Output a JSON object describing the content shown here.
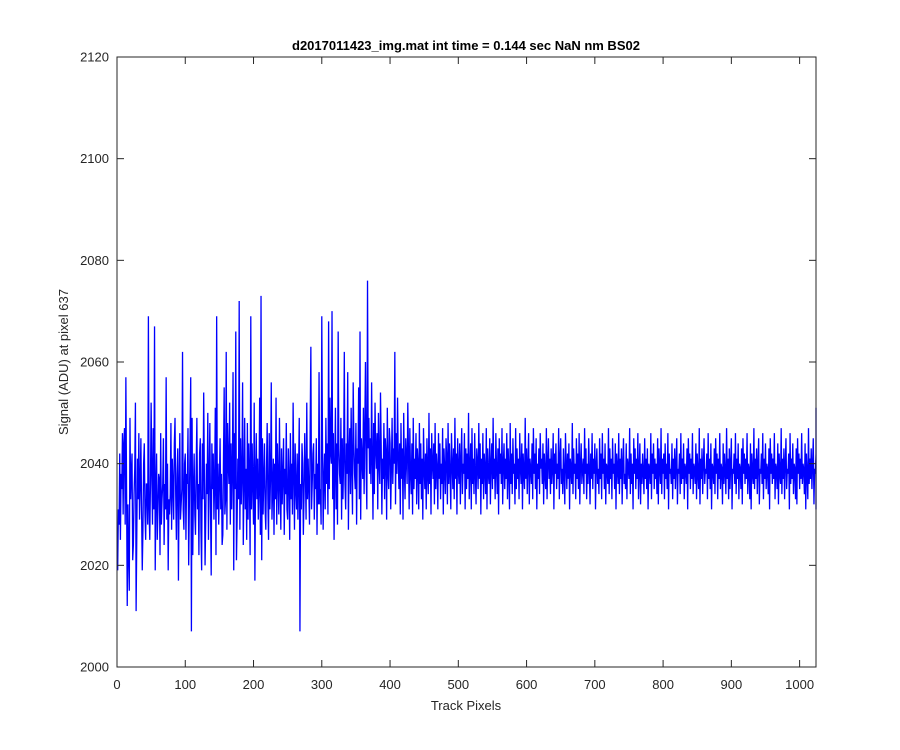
{
  "chart_data": {
    "type": "line",
    "title": "d2017011423_img.mat int time = 0.144 sec  NaN nm BS02",
    "xlabel": "Track Pixels",
    "ylabel": "Signal (ADU) at pixel 637",
    "xlim": [
      0,
      1024
    ],
    "ylim": [
      2000,
      2120
    ],
    "xticks": [
      0,
      100,
      200,
      300,
      400,
      500,
      600,
      700,
      800,
      900,
      1000
    ],
    "yticks": [
      2000,
      2020,
      2040,
      2060,
      2080,
      2100,
      2120
    ],
    "grid": false,
    "colors": {
      "line": "#0000ff",
      "axes": "#262626"
    },
    "series": [
      {
        "x_start": 1,
        "x_step": 1,
        "values": [
          2019,
          2031,
          2028,
          2042,
          2025,
          2038,
          2035,
          2046,
          2030,
          2044,
          2047,
          2028,
          2057,
          2035,
          2012,
          2032,
          2022,
          2015,
          2049,
          2033,
          2038,
          2042,
          2021,
          2024,
          2034,
          2039,
          2052,
          2011,
          2026,
          2041,
          2033,
          2046,
          2029,
          2036,
          2045,
          2031,
          2019,
          2027,
          2040,
          2044,
          2030,
          2025,
          2036,
          2036,
          2028,
          2069,
          2031,
          2025,
          2036,
          2052,
          2038,
          2028,
          2047,
          2031,
          2067,
          2019,
          2034,
          2042,
          2025,
          2031,
          2038,
          2037,
          2022,
          2046,
          2028,
          2033,
          2036,
          2045,
          2024,
          2036,
          2031,
          2057,
          2029,
          2040,
          2019,
          2033,
          2030,
          2034,
          2048,
          2027,
          2041,
          2036,
          2029,
          2044,
          2049,
          2034,
          2025,
          2038,
          2043,
          2017,
          2036,
          2046,
          2029,
          2032,
          2035,
          2062,
          2031,
          2027,
          2040,
          2042,
          2025,
          2038,
          2036,
          2047,
          2020,
          2032,
          2044,
          2057,
          2007,
          2049,
          2022,
          2035,
          2042,
          2030,
          2026,
          2039,
          2049,
          2031,
          2036,
          2022,
          2042,
          2045,
          2027,
          2019,
          2044,
          2033,
          2054,
          2038,
          2020,
          2029,
          2040,
          2034,
          2050,
          2025,
          2037,
          2048,
          2031,
          2018,
          2044,
          2035,
          2042,
          2029,
          2036,
          2051,
          2022,
          2069,
          2031,
          2040,
          2028,
          2036,
          2045,
          2031,
          2038,
          2024,
          2026,
          2041,
          2055,
          2030,
          2033,
          2062,
          2027,
          2048,
          2040,
          2036,
          2052,
          2028,
          2044,
          2031,
          2039,
          2058,
          2019,
          2046,
          2035,
          2066,
          2021,
          2029,
          2041,
          2033,
          2072,
          2027,
          2045,
          2032,
          2038,
          2056,
          2024,
          2036,
          2049,
          2031,
          2039,
          2025,
          2048,
          2029,
          2044,
          2037,
          2022,
          2069,
          2031,
          2044,
          2036,
          2028,
          2052,
          2017,
          2037,
          2046,
          2033,
          2041,
          2029,
          2035,
          2053,
          2026,
          2073,
          2021,
          2045,
          2030,
          2037,
          2044,
          2031,
          2027,
          2039,
          2048,
          2033,
          2025,
          2046,
          2031,
          2038,
          2056,
          2029,
          2035,
          2041,
          2026,
          2040,
          2033,
          2053,
          2028,
          2044,
          2037,
          2030,
          2049,
          2036,
          2027,
          2043,
          2032,
          2038,
          2045,
          2026,
          2039,
          2034,
          2048,
          2031,
          2029,
          2043,
          2037,
          2025,
          2046,
          2033,
          2040,
          2030,
          2052,
          2038,
          2027,
          2044,
          2035,
          2031,
          2042,
          2029,
          2039,
          2049,
          2007,
          2036,
          2031,
          2044,
          2040,
          2026,
          2034,
          2046,
          2038,
          2029,
          2052,
          2033,
          2041,
          2035,
          2028,
          2047,
          2063,
          2031,
          2036,
          2042,
          2044,
          2029,
          2038,
          2035,
          2045,
          2026,
          2040,
          2032,
          2058,
          2032,
          2035,
          2028,
          2069,
          2045,
          2027,
          2037,
          2042,
          2031,
          2049,
          2036,
          2044,
          2030,
          2068,
          2035,
          2053,
          2042,
          2040,
          2070,
          2033,
          2046,
          2025,
          2039,
          2051,
          2031,
          2044,
          2028,
          2066,
          2043,
          2038,
          2036,
          2049,
          2029,
          2045,
          2033,
          2041,
          2062,
          2036,
          2031,
          2044,
          2038,
          2058,
          2027,
          2042,
          2047,
          2034,
          2051,
          2039,
          2030,
          2056,
          2044,
          2038,
          2035,
          2048,
          2028,
          2043,
          2040,
          2055,
          2033,
          2066,
          2029,
          2045,
          2041,
          2037,
          2051,
          2034,
          2047,
          2060,
          2039,
          2031,
          2076,
          2043,
          2049,
          2038,
          2045,
          2036,
          2056,
          2041,
          2029,
          2048,
          2034,
          2052,
          2043,
          2039,
          2046,
          2031,
          2050,
          2040,
          2036,
          2054,
          2044,
          2030,
          2041,
          2037,
          2048,
          2033,
          2045,
          2042,
          2029,
          2051,
          2038,
          2035,
          2047,
          2044,
          2031,
          2039,
          2049,
          2036,
          2043,
          2040,
          2062,
          2032,
          2046,
          2038,
          2053,
          2041,
          2035,
          2044,
          2030,
          2048,
          2037,
          2043,
          2029,
          2050,
          2039,
          2033,
          2045,
          2041,
          2036,
          2052,
          2042,
          2031,
          2047,
          2038,
          2034,
          2044,
          2030,
          2049,
          2035,
          2041,
          2037,
          2046,
          2032,
          2043,
          2040,
          2031,
          2048,
          2036,
          2044,
          2033,
          2041,
          2029,
          2047,
          2039,
          2035,
          2042,
          2031,
          2045,
          2038,
          2034,
          2050,
          2036,
          2043,
          2030,
          2046,
          2040,
          2037,
          2044,
          2032,
          2048,
          2035,
          2042,
          2039,
          2031,
          2046,
          2037,
          2044,
          2033,
          2040,
          2036,
          2047,
          2030,
          2043,
          2039,
          2034,
          2045,
          2041,
          2032,
          2048,
          2036,
          2044,
          2038,
          2031,
          2046,
          2040,
          2035,
          2043,
          2033,
          2049,
          2037,
          2042,
          2030,
          2045,
          2039,
          2036,
          2044,
          2032,
          2041,
          2047,
          2034,
          2040,
          2038,
          2046,
          2031,
          2043,
          2035,
          2042,
          2037,
          2050,
          2033,
          2039,
          2044,
          2031,
          2047,
          2036,
          2041,
          2034,
          2046,
          2038,
          2032,
          2043,
          2040,
          2035,
          2048,
          2037,
          2044,
          2030,
          2041,
          2036,
          2046,
          2033,
          2042,
          2039,
          2034,
          2047,
          2031,
          2043,
          2038,
          2036,
          2045,
          2032,
          2040,
          2044,
          2035,
          2049,
          2037,
          2041,
          2033,
          2046,
          2039,
          2034,
          2043,
          2030,
          2045,
          2038,
          2042,
          2036,
          2047,
          2032,
          2040,
          2044,
          2035,
          2041,
          2037,
          2046,
          2033,
          2043,
          2039,
          2031,
          2048,
          2036,
          2042,
          2034,
          2045,
          2038,
          2040,
          2032,
          2047,
          2035,
          2043,
          2037,
          2041,
          2033,
          2046,
          2039,
          2036,
          2044,
          2031,
          2042,
          2038,
          2035,
          2049,
          2037,
          2043,
          2034,
          2040,
          2046,
          2032,
          2041,
          2039,
          2036,
          2044,
          2033,
          2047,
          2038,
          2042,
          2035,
          2045,
          2031,
          2040,
          2037,
          2043,
          2034,
          2046,
          2039,
          2041,
          2036,
          2044,
          2032,
          2042,
          2038,
          2035,
          2047,
          2033,
          2040,
          2045,
          2037,
          2041,
          2034,
          2043,
          2036,
          2039,
          2046,
          2031,
          2042,
          2038,
          2044,
          2035,
          2040,
          2037,
          2047,
          2033,
          2041,
          2045,
          2036,
          2039,
          2034,
          2043,
          2038,
          2032,
          2046,
          2040,
          2035,
          2042,
          2037,
          2044,
          2031,
          2041,
          2039,
          2036,
          2048,
          2034,
          2043,
          2038,
          2040,
          2033,
          2045,
          2037,
          2042,
          2035,
          2046,
          2032,
          2040,
          2044,
          2036,
          2039,
          2041,
          2034,
          2047,
          2038,
          2043,
          2033,
          2040,
          2036,
          2045,
          2039,
          2032,
          2042,
          2037,
          2046,
          2035,
          2041,
          2038,
          2044,
          2031,
          2040,
          2043,
          2036,
          2039,
          2034,
          2045,
          2037,
          2042,
          2033,
          2046,
          2038,
          2041,
          2035,
          2044,
          2032,
          2040,
          2039,
          2036,
          2047,
          2034,
          2043,
          2037,
          2041,
          2033,
          2045,
          2038,
          2040,
          2035,
          2044,
          2031,
          2042,
          2039,
          2036,
          2046,
          2034,
          2041,
          2037,
          2043,
          2032,
          2040,
          2045,
          2036,
          2038,
          2035,
          2044,
          2033,
          2041,
          2039,
          2037,
          2047,
          2034,
          2042,
          2036,
          2040,
          2031,
          2045,
          2038,
          2043,
          2035,
          2041,
          2037,
          2046,
          2033,
          2039,
          2044,
          2032,
          2040,
          2036,
          2042,
          2038,
          2034,
          2045,
          2037,
          2041,
          2035,
          2043,
          2031,
          2040,
          2039,
          2036,
          2046,
          2033,
          2042,
          2038,
          2044,
          2035,
          2041,
          2037,
          2040,
          2034,
          2045,
          2032,
          2043,
          2039,
          2036,
          2047,
          2034,
          2041,
          2038,
          2042,
          2033,
          2044,
          2037,
          2040,
          2035,
          2046,
          2031,
          2042,
          2038,
          2039,
          2036,
          2044,
          2033,
          2041,
          2037,
          2043,
          2035,
          2040,
          2045,
          2032,
          2039,
          2038,
          2042,
          2034,
          2046,
          2036,
          2041,
          2037,
          2044,
          2033,
          2040,
          2039,
          2036,
          2043,
          2031,
          2045,
          2038,
          2042,
          2035,
          2041,
          2037,
          2046,
          2034,
          2040,
          2039,
          2036,
          2044,
          2033,
          2042,
          2038,
          2035,
          2047,
          2032,
          2041,
          2037,
          2043,
          2034,
          2040,
          2045,
          2036,
          2039,
          2038,
          2042,
          2033,
          2046,
          2037,
          2041,
          2035,
          2044,
          2031,
          2040,
          2039,
          2036,
          2043,
          2034,
          2045,
          2038,
          2042,
          2033,
          2041,
          2037,
          2046,
          2035,
          2040,
          2039,
          2032,
          2044,
          2036,
          2042,
          2038,
          2034,
          2047,
          2037,
          2041,
          2033,
          2043,
          2035,
          2040,
          2045,
          2031,
          2039,
          2038,
          2042,
          2036,
          2046,
          2034,
          2041,
          2037,
          2044,
          2033,
          2040,
          2039,
          2035,
          2043,
          2032,
          2045,
          2038,
          2042,
          2036,
          2041,
          2037,
          2046,
          2034,
          2040,
          2039,
          2033,
          2044,
          2031,
          2042,
          2038,
          2036,
          2047,
          2035,
          2041,
          2037,
          2043,
          2034,
          2040,
          2045,
          2032,
          2039,
          2038,
          2042,
          2036,
          2046,
          2033,
          2041,
          2037,
          2044,
          2035,
          2040,
          2039,
          2034,
          2043,
          2031,
          2045,
          2038,
          2042,
          2036,
          2041,
          2037,
          2046,
          2033,
          2040,
          2039,
          2035,
          2044,
          2032,
          2042,
          2038,
          2036,
          2047,
          2034,
          2041,
          2037,
          2043,
          2033,
          2040,
          2045,
          2035,
          2039,
          2038,
          2042,
          2031,
          2046,
          2036,
          2041,
          2037,
          2044,
          2034,
          2040,
          2039,
          2033,
          2043,
          2032,
          2045,
          2038,
          2042,
          2035,
          2041,
          2037,
          2046,
          2036,
          2040,
          2039,
          2034,
          2044,
          2031,
          2042,
          2038,
          2033,
          2047,
          2036,
          2041,
          2037,
          2043,
          2035,
          2040,
          2045,
          2032,
          2039,
          2038,
          2042,
          2034,
          2046,
          2036,
          2041,
          2037,
          2044,
          2033,
          2040,
          2039,
          2035,
          2043,
          2031,
          2045,
          2038,
          2042,
          2036,
          2041,
          2037,
          2046,
          2034,
          2040,
          2039,
          2032,
          2044,
          2033,
          2042,
          2038,
          2036,
          2047,
          2035,
          2041,
          2037,
          2043,
          2034,
          2051,
          2041,
          2037,
          2044,
          2034,
          2051
        ]
      }
    ]
  }
}
